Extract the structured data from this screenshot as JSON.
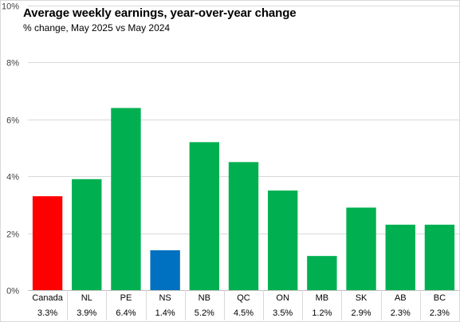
{
  "chart_data": {
    "type": "bar",
    "title": "Average weekly earnings, year-over-year change",
    "subtitle": "% change, May 2025 vs May 2024",
    "categories": [
      "Canada",
      "NL",
      "PE",
      "NS",
      "NB",
      "QC",
      "ON",
      "MB",
      "SK",
      "AB",
      "BC"
    ],
    "values": [
      3.3,
      3.9,
      6.4,
      1.4,
      5.2,
      4.5,
      3.5,
      1.2,
      2.9,
      2.3,
      2.3
    ],
    "value_labels": [
      "3.3%",
      "3.9%",
      "6.4%",
      "1.4%",
      "5.2%",
      "4.5%",
      "3.5%",
      "1.2%",
      "2.9%",
      "2.3%",
      "2.3%"
    ],
    "bar_colors": [
      "#ff0000",
      "#00b050",
      "#00b050",
      "#0070c0",
      "#00b050",
      "#00b050",
      "#00b050",
      "#00b050",
      "#00b050",
      "#00b050",
      "#00b050"
    ],
    "ylim": [
      0,
      10
    ],
    "yticks": [
      0,
      2,
      4,
      6,
      8,
      10
    ],
    "ytick_labels": [
      "0%",
      "2%",
      "4%",
      "6%",
      "8%",
      "10%"
    ],
    "grid": true,
    "legend": "none"
  }
}
